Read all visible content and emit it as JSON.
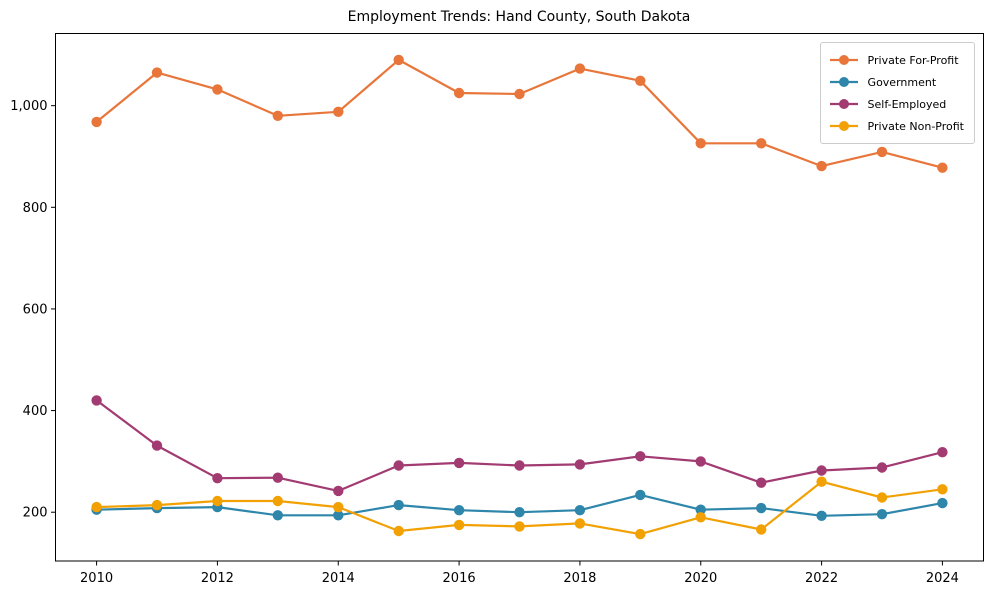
{
  "figure": {
    "background": "#ffffff",
    "frame_color": "#000000",
    "text_color": "#000000"
  },
  "chart_data": {
    "type": "line",
    "title": "Employment Trends: Hand County, South Dakota",
    "xlabel": "",
    "ylabel": "",
    "grid": false,
    "legend_position": "upper right",
    "x": [
      2010,
      2011,
      2012,
      2013,
      2014,
      2015,
      2016,
      2017,
      2018,
      2019,
      2020,
      2021,
      2022,
      2023,
      2024
    ],
    "series": [
      {
        "name": "Private For-Profit",
        "color": "#E8763B",
        "values": [
          968,
          1065,
          1032,
          980,
          988,
          1090,
          1025,
          1023,
          1073,
          1049,
          926,
          926,
          881,
          909,
          878
        ]
      },
      {
        "name": "Government",
        "color": "#2E86AB",
        "values": [
          205,
          208,
          210,
          194,
          194,
          214,
          204,
          200,
          204,
          234,
          205,
          208,
          193,
          196,
          218
        ]
      },
      {
        "name": "Self-Employed",
        "color": "#A23B72",
        "values": [
          420,
          331,
          267,
          268,
          242,
          292,
          297,
          292,
          294,
          310,
          300,
          258,
          282,
          288,
          318
        ]
      },
      {
        "name": "Private Non-Profit",
        "color": "#F2A104",
        "values": [
          210,
          214,
          222,
          222,
          210,
          163,
          175,
          172,
          178,
          157,
          190,
          166,
          260,
          229,
          245
        ]
      }
    ],
    "xticks": [
      2010,
      2012,
      2014,
      2016,
      2018,
      2020,
      2022,
      2024
    ],
    "xtick_labels": [
      "2010",
      "2012",
      "2014",
      "2016",
      "2018",
      "2020",
      "2022",
      "2024"
    ],
    "yticks": [
      200,
      400,
      600,
      800,
      1000
    ],
    "ytick_labels": [
      "200",
      "400",
      "600",
      "800",
      "1,000"
    ],
    "xlim": [
      2009.32,
      2024.68
    ],
    "ylim": [
      104,
      1142
    ]
  }
}
